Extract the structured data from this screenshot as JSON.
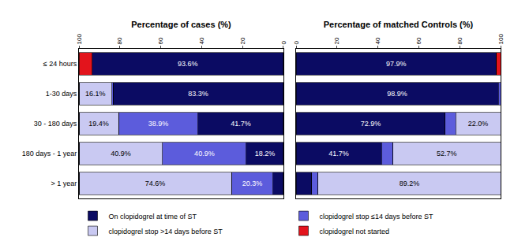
{
  "chart_data": [
    {
      "type": "bar",
      "title": "Percentage of cases (%)",
      "orientation": "horizontal",
      "stacked": true,
      "data_labels": true,
      "legend": "bottom",
      "categories": [
        "≤ 24 hours",
        "1-30 days",
        "30 - 180 days",
        "180 days - 1 year",
        "> 1 year"
      ],
      "xlim": [
        100,
        0
      ],
      "xticks": [
        0,
        20,
        40,
        60,
        80,
        100
      ],
      "series": [
        {
          "name": "On clopidogrel at time of ST",
          "color": "#0b0b63",
          "values": [
            93.6,
            83.3,
            41.7,
            18.2,
            5.1
          ],
          "value_labels": [
            "93.6%",
            "83.3%",
            "41.7%",
            "18.2%",
            null
          ]
        },
        {
          "name": "clopidogrel stop ≤14 days before ST",
          "color": "#5c5cdc",
          "values": [
            0,
            0.6,
            38.9,
            40.9,
            20.3
          ],
          "value_labels": [
            null,
            null,
            "38.9%",
            "40.9%",
            "20.3%"
          ]
        },
        {
          "name": "clopidogrel stop >14 days before ST",
          "color": "#c9c9f2",
          "values": [
            0,
            16.1,
            19.4,
            40.9,
            74.6
          ],
          "value_labels": [
            null,
            "16.1%",
            "19.4%",
            "40.9%",
            "74.6%"
          ]
        },
        {
          "name": "clopidogrel not started",
          "color": "#e3141c",
          "values": [
            6.4,
            0,
            0,
            0,
            0
          ],
          "value_labels": [
            null,
            null,
            null,
            null,
            null
          ]
        }
      ]
    },
    {
      "type": "bar",
      "title": "Percentage of matched Controls (%)",
      "orientation": "horizontal",
      "stacked": true,
      "data_labels": true,
      "categories": [
        "≤ 24 hours",
        "1-30 days",
        "30 - 180 days",
        "180 days - 1 year",
        "> 1 year"
      ],
      "xlim": [
        0,
        100
      ],
      "xticks": [
        0,
        20,
        40,
        60,
        80,
        100
      ],
      "series": [
        {
          "name": "On clopidogrel at time of ST",
          "color": "#0b0b63",
          "values": [
            97.9,
            98.9,
            72.9,
            41.7,
            7.6
          ],
          "value_labels": [
            "97.9%",
            "98.9%",
            "72.9%",
            "41.7%",
            null
          ]
        },
        {
          "name": "clopidogrel stop ≤14 days before ST",
          "color": "#5c5cdc",
          "values": [
            0,
            1.1,
            5.1,
            5.6,
            3.2
          ],
          "value_labels": [
            null,
            null,
            null,
            null,
            null
          ]
        },
        {
          "name": "clopidogrel stop >14 days before ST",
          "color": "#c9c9f2",
          "values": [
            0,
            0,
            22.0,
            52.7,
            89.2
          ],
          "value_labels": [
            null,
            null,
            "22.0%",
            "52.7%",
            "89.2%"
          ]
        },
        {
          "name": "clopidogrel not started",
          "color": "#e3141c",
          "values": [
            2.1,
            0,
            0,
            0,
            0
          ],
          "value_labels": [
            null,
            null,
            null,
            null,
            null
          ]
        }
      ]
    }
  ]
}
